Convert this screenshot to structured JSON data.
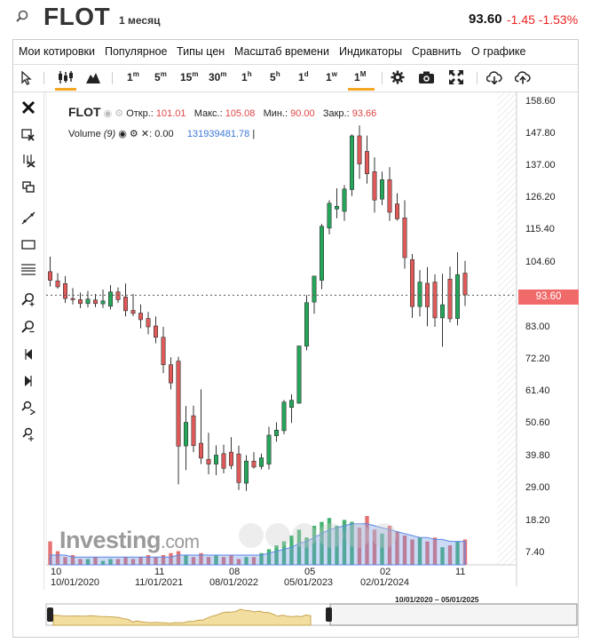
{
  "header": {
    "ticker": "FLOT",
    "period": "1 месяц",
    "price": "93.60",
    "change": "-1.45",
    "change_pct": "-1.53%",
    "down_color": "#e53935"
  },
  "menu": [
    "Мои котировки",
    "Популярное",
    "Типы цен",
    "Масштаб времени",
    "Индикаторы",
    "Сравнить",
    "О графике"
  ],
  "timeframes": [
    {
      "base": "1",
      "sup": "m"
    },
    {
      "base": "5",
      "sup": "m"
    },
    {
      "base": "15",
      "sup": "m"
    },
    {
      "base": "30",
      "sup": "m"
    },
    {
      "base": "1",
      "sup": "h"
    },
    {
      "base": "5",
      "sup": "h"
    },
    {
      "base": "1",
      "sup": "d"
    },
    {
      "base": "1",
      "sup": "w"
    },
    {
      "base": "1",
      "sup": "M"
    }
  ],
  "icons": {
    "toolbar": [
      "cursor-icon",
      "candlestick-icon",
      "area-chart-icon",
      "settings-icon",
      "camera-icon",
      "fullscreen-icon",
      "download-icon",
      "upload-icon"
    ],
    "left": [
      "close-icon",
      "delete-drawing-icon",
      "delete-all-icon",
      "clone-icon",
      "trend-line-icon",
      "rectangle-icon",
      "fibonacci-icon",
      "zoom-in-icon",
      "zoom-out-icon",
      "scroll-left-icon",
      "scroll-right-icon",
      "magnet-icon",
      "crosshair-icon"
    ]
  },
  "legend": {
    "ticker": "FLOT",
    "open_label": "Откр.:",
    "open": "101.01",
    "high_label": "Макс.:",
    "high": "105.08",
    "low_label": "Мин.:",
    "low": "90.00",
    "close_label": "Закр.:",
    "close": "93.66",
    "volume_label": "Volume",
    "volume_period": "(9)",
    "volume_value": "0.00",
    "volume_ma": "131939481.78"
  },
  "logo": {
    "brand": "Investing",
    "suffix": ".com"
  },
  "price_badge": "93.60",
  "y_axis": [
    "158.60",
    "147.80",
    "137.00",
    "126.20",
    "115.40",
    "104.60",
    "93.60",
    "83.00",
    "72.20",
    "61.40",
    "50.60",
    "39.80",
    "29.00",
    "18.20",
    "7.40"
  ],
  "x_axis": {
    "top": [
      "10",
      "11",
      "08",
      "05",
      "02",
      "11"
    ],
    "bottom": [
      "10/01/2020",
      "11/01/2021",
      "08/01/2022",
      "05/01/2023",
      "02/01/2024"
    ]
  },
  "range_label": "10/01/2020 – 05/01/2025",
  "chart_data": {
    "type": "candlestick",
    "y_range": [
      7.4,
      158.6
    ],
    "up_color": "#26a65b",
    "down_color": "#e05a5a",
    "last_price": 93.6,
    "candles": [
      {
        "o": 101.5,
        "h": 106.5,
        "l": 96.5,
        "c": 98.6
      },
      {
        "o": 98.4,
        "h": 101.0,
        "l": 95.8,
        "c": 96.4
      },
      {
        "o": 97.5,
        "h": 100.0,
        "l": 91.0,
        "c": 92.5
      },
      {
        "o": 92.5,
        "h": 96.0,
        "l": 90.5,
        "c": 92.1
      },
      {
        "o": 92.1,
        "h": 94.5,
        "l": 89.3,
        "c": 90.8
      },
      {
        "o": 90.8,
        "h": 95.0,
        "l": 89.5,
        "c": 92.3
      },
      {
        "o": 92.0,
        "h": 94.0,
        "l": 89.6,
        "c": 90.8
      },
      {
        "o": 90.7,
        "h": 95.5,
        "l": 89.3,
        "c": 91.7
      },
      {
        "o": 89.9,
        "h": 97.0,
        "l": 88.8,
        "c": 94.7
      },
      {
        "o": 94.7,
        "h": 96.2,
        "l": 91.0,
        "c": 92.1
      },
      {
        "o": 93.0,
        "h": 97.5,
        "l": 86.5,
        "c": 88.4
      },
      {
        "o": 88.5,
        "h": 94.0,
        "l": 86.6,
        "c": 87.5
      },
      {
        "o": 87.6,
        "h": 90.5,
        "l": 82.5,
        "c": 85.4
      },
      {
        "o": 85.8,
        "h": 88.0,
        "l": 80.5,
        "c": 83.0
      },
      {
        "o": 83.3,
        "h": 86.5,
        "l": 77.5,
        "c": 79.5
      },
      {
        "o": 79.5,
        "h": 83.0,
        "l": 67.5,
        "c": 70.3
      },
      {
        "o": 70.3,
        "h": 72.8,
        "l": 62.0,
        "c": 64.2
      },
      {
        "o": 71.5,
        "h": 73.0,
        "l": 30.2,
        "c": 43.0
      },
      {
        "o": 43.1,
        "h": 56.5,
        "l": 35.0,
        "c": 51.0
      },
      {
        "o": 53.2,
        "h": 56.6,
        "l": 41.0,
        "c": 43.2
      },
      {
        "o": 44.0,
        "h": 62.0,
        "l": 37.0,
        "c": 39.0
      },
      {
        "o": 38.6,
        "h": 47.5,
        "l": 33.6,
        "c": 37.0
      },
      {
        "o": 37.0,
        "h": 43.3,
        "l": 33.3,
        "c": 40.0
      },
      {
        "o": 40.5,
        "h": 43.5,
        "l": 33.9,
        "c": 35.6
      },
      {
        "o": 41.0,
        "h": 46.0,
        "l": 35.3,
        "c": 36.5
      },
      {
        "o": 40.4,
        "h": 43.2,
        "l": 28.3,
        "c": 30.8
      },
      {
        "o": 30.6,
        "h": 40.0,
        "l": 28.0,
        "c": 38.0
      },
      {
        "o": 38.0,
        "h": 41.0,
        "l": 35.5,
        "c": 36.0
      },
      {
        "o": 36.2,
        "h": 40.5,
        "l": 35.2,
        "c": 39.1
      },
      {
        "o": 37.0,
        "h": 49.5,
        "l": 35.2,
        "c": 46.7
      },
      {
        "o": 46.5,
        "h": 51.0,
        "l": 44.5,
        "c": 48.4
      },
      {
        "o": 48.2,
        "h": 58.5,
        "l": 47.0,
        "c": 57.8
      },
      {
        "o": 56.0,
        "h": 60.4,
        "l": 50.8,
        "c": 58.4
      },
      {
        "o": 57.4,
        "h": 76.5,
        "l": 57.3,
        "c": 76.6
      },
      {
        "o": 76.5,
        "h": 93.6,
        "l": 75.1,
        "c": 91.1
      },
      {
        "o": 91.3,
        "h": 100.0,
        "l": 87.4,
        "c": 100.0
      },
      {
        "o": 98.6,
        "h": 117.5,
        "l": 95.6,
        "c": 116.7
      },
      {
        "o": 116.1,
        "h": 125.4,
        "l": 114.0,
        "c": 124.4
      },
      {
        "o": 122.5,
        "h": 129.4,
        "l": 119.4,
        "c": 123.4
      },
      {
        "o": 121.7,
        "h": 130.5,
        "l": 118.5,
        "c": 129.2
      },
      {
        "o": 129.0,
        "h": 147.5,
        "l": 126.8,
        "c": 147.0
      },
      {
        "o": 147.0,
        "h": 150.5,
        "l": 132.6,
        "c": 137.6
      },
      {
        "o": 141.8,
        "h": 147.1,
        "l": 131.0,
        "c": 134.3
      },
      {
        "o": 135.0,
        "h": 139.8,
        "l": 121.3,
        "c": 125.5
      },
      {
        "o": 125.8,
        "h": 135.0,
        "l": 123.8,
        "c": 132.3
      },
      {
        "o": 132.3,
        "h": 136.5,
        "l": 118.5,
        "c": 121.4
      },
      {
        "o": 124.2,
        "h": 127.8,
        "l": 118.6,
        "c": 119.2
      },
      {
        "o": 119.5,
        "h": 125.4,
        "l": 102.5,
        "c": 106.2
      },
      {
        "o": 105.5,
        "h": 107.4,
        "l": 86.0,
        "c": 89.8
      },
      {
        "o": 89.8,
        "h": 102.0,
        "l": 86.5,
        "c": 98.0
      },
      {
        "o": 97.6,
        "h": 103.0,
        "l": 83.2,
        "c": 89.7
      },
      {
        "o": 98.0,
        "h": 100.6,
        "l": 83.0,
        "c": 86.0
      },
      {
        "o": 86.0,
        "h": 100.8,
        "l": 76.3,
        "c": 90.4
      },
      {
        "o": 99.0,
        "h": 103.2,
        "l": 84.5,
        "c": 85.7
      },
      {
        "o": 85.8,
        "h": 108.0,
        "l": 83.5,
        "c": 100.5
      },
      {
        "o": 101.0,
        "h": 105.1,
        "l": 90.0,
        "c": 93.7
      }
    ],
    "volumes": [
      12,
      7,
      4,
      5,
      3,
      3,
      4,
      2,
      3,
      3,
      4,
      3,
      4,
      5,
      4,
      5,
      6,
      7,
      5,
      4,
      6,
      4,
      5,
      4,
      5,
      3,
      4,
      4,
      6,
      8,
      10,
      12,
      15,
      18,
      14,
      20,
      22,
      24,
      20,
      23,
      22,
      19,
      25,
      18,
      16,
      20,
      17,
      15,
      13,
      14,
      12,
      14,
      9,
      10,
      12,
      13
    ],
    "volume_ma": [
      5,
      5,
      5,
      4,
      4,
      4,
      4,
      4,
      4,
      4,
      4,
      4,
      4,
      4,
      4,
      4,
      4,
      5,
      5,
      5,
      5,
      5,
      5,
      5,
      5,
      5,
      5,
      5,
      5,
      6,
      7,
      8,
      9,
      11,
      12,
      14,
      16,
      18,
      19,
      20,
      21,
      21,
      21,
      20,
      19,
      18,
      17,
      16,
      15,
      14,
      14,
      13,
      13,
      12,
      12,
      12
    ]
  }
}
